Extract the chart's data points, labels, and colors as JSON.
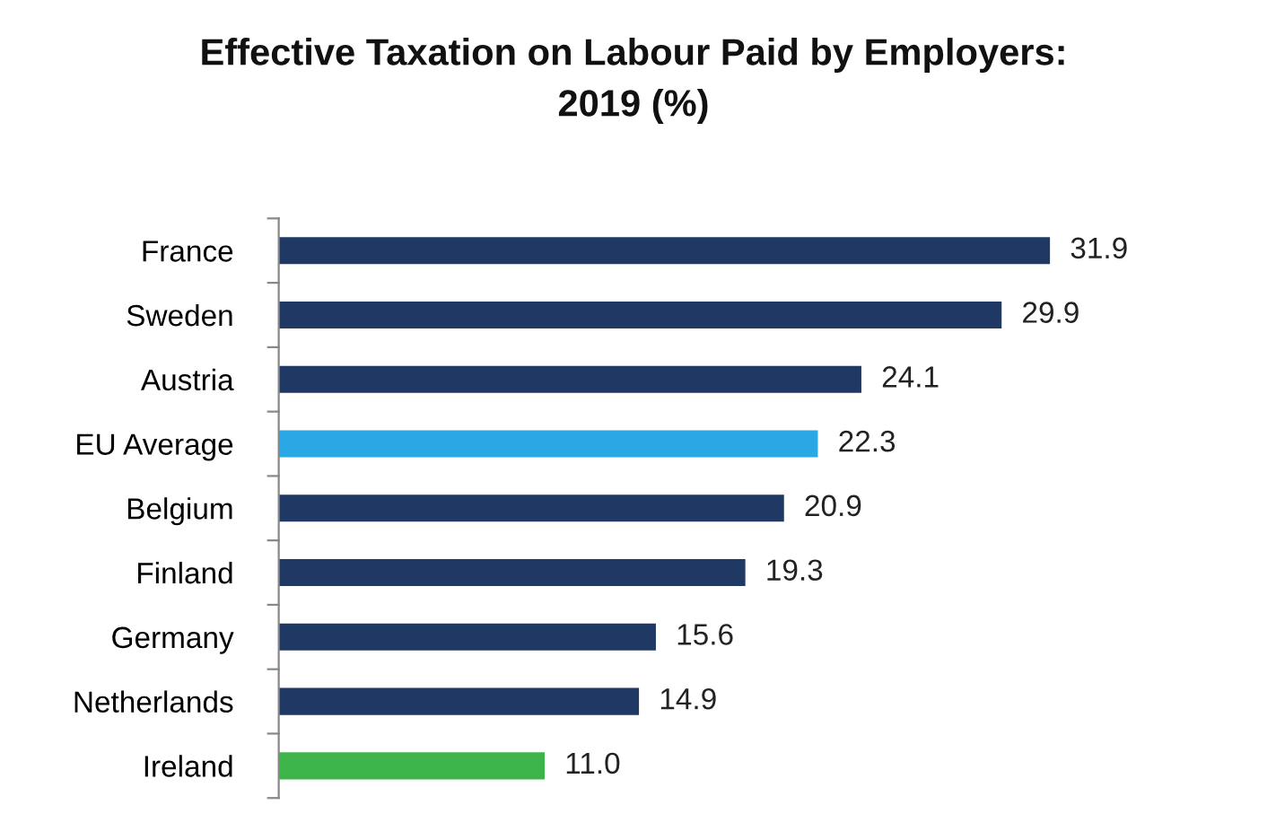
{
  "chart_data": {
    "type": "bar",
    "orientation": "horizontal",
    "title": "Effective Taxation on Labour Paid by Employers:\n2019 (%)",
    "categories": [
      "France",
      "Sweden",
      "Austria",
      "EU Average",
      "Belgium",
      "Finland",
      "Germany",
      "Netherlands",
      "Ireland"
    ],
    "values": [
      31.9,
      29.9,
      24.1,
      22.3,
      20.9,
      19.3,
      15.6,
      14.9,
      11.0
    ],
    "colors": [
      "#1f3864",
      "#1f3864",
      "#1f3864",
      "#2aa8e6",
      "#1f3864",
      "#1f3864",
      "#1f3864",
      "#1f3864",
      "#3cb44a"
    ],
    "value_labels": [
      "31.9",
      "29.9",
      "24.1",
      "22.3",
      "20.9",
      "19.3",
      "15.6",
      "14.9",
      "11.0"
    ],
    "grid": false,
    "legend": false
  }
}
